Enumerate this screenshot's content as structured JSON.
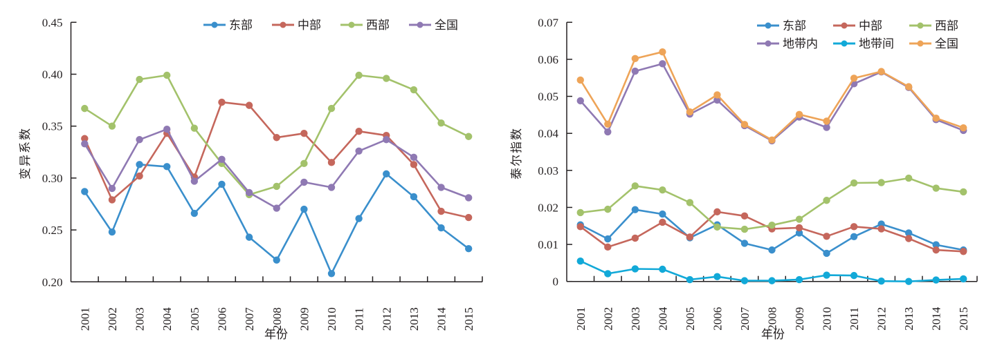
{
  "chart_data": [
    {
      "type": "line",
      "title": "",
      "xlabel": "年份",
      "ylabel": "变异系数",
      "ylim": [
        0.2,
        0.45
      ],
      "yticks": [
        "0.20",
        "0.25",
        "0.30",
        "0.35",
        "0.40",
        "0.45"
      ],
      "ytick_values": [
        0.2,
        0.25,
        0.3,
        0.35,
        0.4,
        0.45
      ],
      "categories": [
        "2001",
        "2002",
        "2003",
        "2004",
        "2005",
        "2006",
        "2007",
        "2008",
        "2009",
        "2010",
        "2011",
        "2012",
        "2013",
        "2014",
        "2015"
      ],
      "grid": false,
      "legend": {
        "placement": "top-right",
        "columns": 4
      },
      "series": [
        {
          "name": "东部",
          "color": "#3a8fcc",
          "values": [
            0.287,
            0.248,
            0.313,
            0.311,
            0.266,
            0.294,
            0.243,
            0.221,
            0.27,
            0.208,
            0.261,
            0.304,
            0.282,
            0.252,
            0.232
          ]
        },
        {
          "name": "中部",
          "color": "#c5675c",
          "values": [
            0.338,
            0.279,
            0.302,
            0.343,
            0.301,
            0.373,
            0.37,
            0.339,
            0.343,
            0.315,
            0.345,
            0.341,
            0.313,
            0.268,
            0.262
          ]
        },
        {
          "name": "西部",
          "color": "#a3c26b",
          "values": [
            0.367,
            0.35,
            0.395,
            0.399,
            0.348,
            0.314,
            0.284,
            0.292,
            0.314,
            0.367,
            0.399,
            0.396,
            0.385,
            0.353,
            0.34
          ]
        },
        {
          "name": "全国",
          "color": "#8f79b3",
          "values": [
            0.333,
            0.29,
            0.337,
            0.347,
            0.297,
            0.318,
            0.286,
            0.271,
            0.296,
            0.291,
            0.326,
            0.337,
            0.32,
            0.291,
            0.281
          ]
        }
      ]
    },
    {
      "type": "line",
      "title": "",
      "xlabel": "年份",
      "ylabel": "泰尔指数",
      "ylim": [
        0,
        0.07
      ],
      "yticks": [
        "0",
        "0.01",
        "0.02",
        "0.03",
        "0.04",
        "0.05",
        "0.06",
        "0.07"
      ],
      "ytick_values": [
        0,
        0.01,
        0.02,
        0.03,
        0.04,
        0.05,
        0.06,
        0.07
      ],
      "categories": [
        "2001",
        "2002",
        "2003",
        "2004",
        "2005",
        "2006",
        "2007",
        "2008",
        "2009",
        "2010",
        "2011",
        "2012",
        "2013",
        "2014",
        "2015"
      ],
      "grid": false,
      "legend": {
        "placement": "top-right",
        "columns": 3
      },
      "series": [
        {
          "name": "东部",
          "color": "#3a8fcc",
          "values": [
            0.0153,
            0.0115,
            0.0194,
            0.0182,
            0.0118,
            0.0153,
            0.0103,
            0.0085,
            0.0131,
            0.0076,
            0.0121,
            0.0155,
            0.0131,
            0.0099,
            0.0085
          ]
        },
        {
          "name": "中部",
          "color": "#c5675c",
          "values": [
            0.0148,
            0.0093,
            0.0117,
            0.016,
            0.012,
            0.0188,
            0.0177,
            0.0142,
            0.0145,
            0.0122,
            0.0148,
            0.0142,
            0.0116,
            0.0085,
            0.0081
          ]
        },
        {
          "name": "西部",
          "color": "#a3c26b",
          "values": [
            0.0186,
            0.0195,
            0.0258,
            0.0247,
            0.0213,
            0.0147,
            0.0141,
            0.0152,
            0.0168,
            0.0219,
            0.0266,
            0.0267,
            0.0279,
            0.0252,
            0.0242
          ]
        },
        {
          "name": "地带内",
          "color": "#8f79b3",
          "values": [
            0.0488,
            0.0404,
            0.0568,
            0.0588,
            0.0452,
            0.049,
            0.0421,
            0.038,
            0.0444,
            0.0416,
            0.0534,
            0.0566,
            0.0524,
            0.0437,
            0.0408
          ]
        },
        {
          "name": "地带间",
          "color": "#12a9d8",
          "values": [
            0.0055,
            0.0021,
            0.0034,
            0.0033,
            0.0005,
            0.0013,
            0.0002,
            0.0002,
            0.0005,
            0.0017,
            0.0016,
            0.0001,
            0.0,
            0.0004,
            0.0007
          ]
        },
        {
          "name": "全国",
          "color": "#eea458",
          "values": [
            0.0544,
            0.0425,
            0.0602,
            0.062,
            0.0458,
            0.0504,
            0.0424,
            0.0382,
            0.0451,
            0.0433,
            0.0549,
            0.0567,
            0.0526,
            0.0441,
            0.0415
          ]
        }
      ]
    }
  ]
}
